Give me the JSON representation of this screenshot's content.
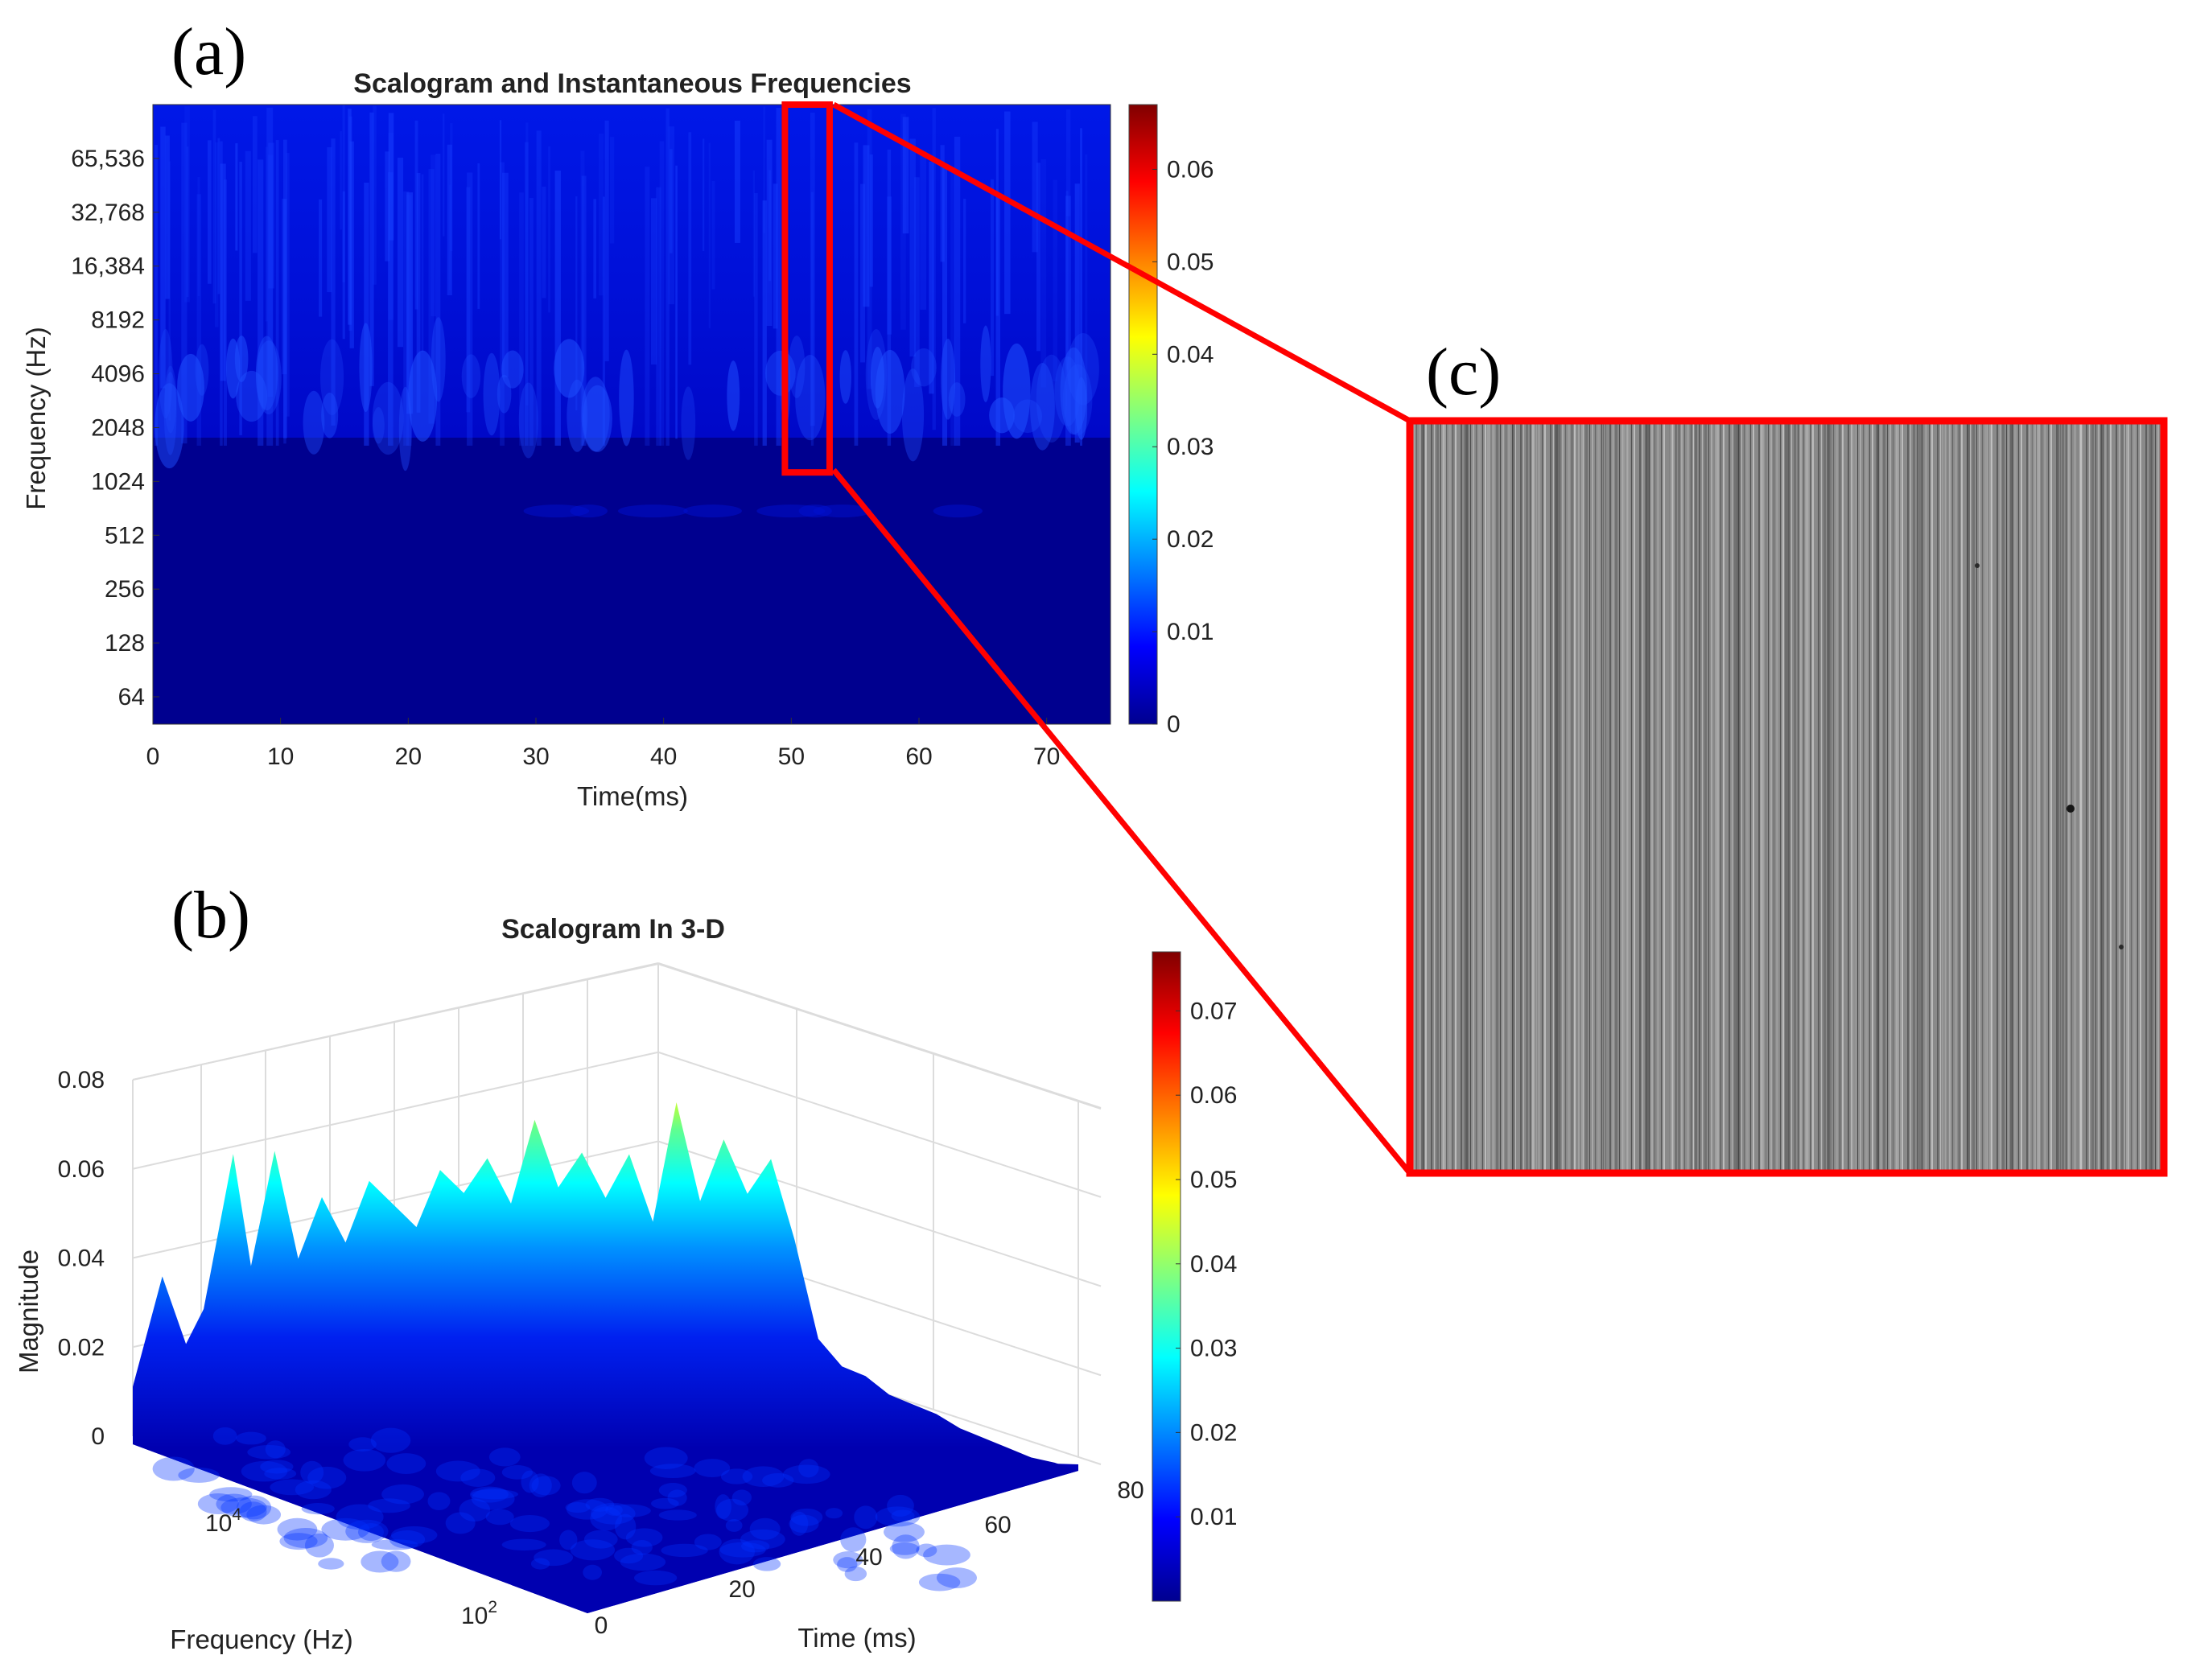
{
  "colors": {
    "jet": [
      "#00008f",
      "#0000ff",
      "#0080ff",
      "#00ffff",
      "#80ff80",
      "#ffff00",
      "#ff8000",
      "#ff0000",
      "#800000"
    ],
    "zoom_frame": "#ff0000",
    "micrograph_gray": "#8c8c8c"
  },
  "chart_data": [
    {
      "panel_label": "(a)",
      "type": "heatmap",
      "title": "Scalogram and Instantaneous Frequencies",
      "xlabel": "Time(ms)",
      "ylabel": "Frequency (Hz)",
      "x_ticks": [
        0,
        10,
        20,
        30,
        40,
        50,
        60,
        70
      ],
      "xlim": [
        0,
        75
      ],
      "y_scale": "log2",
      "y_ticks": [
        "64",
        "128",
        "256",
        "512",
        "1024",
        "2048",
        "4096",
        "8192",
        "16,384",
        "32,768",
        "65,536"
      ],
      "y_tick_values": [
        64,
        128,
        256,
        512,
        1024,
        2048,
        4096,
        8192,
        16384,
        32768,
        65536
      ],
      "ylim": [
        45,
        131072
      ],
      "colorbar": {
        "ticks": [
          0,
          0.01,
          0.02,
          0.03,
          0.04,
          0.05,
          0.06
        ],
        "range": [
          0,
          0.067
        ]
      },
      "highlight": {
        "time_range_ms": [
          49.5,
          53
        ],
        "freq_range_hz": [
          1150,
          131072
        ],
        "color": "red"
      },
      "bands": [
        {
          "freq_range_hz": [
            1800,
            131072
          ],
          "typical_magnitude": 0.006
        },
        {
          "freq_range_hz": [
            45,
            1800
          ],
          "typical_magnitude": 0.0
        }
      ]
    },
    {
      "panel_label": "(b)",
      "type": "area",
      "title": "Scalogram In 3-D",
      "xlabel": "Time (ms)",
      "ylabel": "Frequency (Hz)",
      "zlabel": "Magnitude",
      "x_ticks": [
        0,
        20,
        40,
        60,
        80
      ],
      "y_ticks": [
        "10^2",
        "10^4"
      ],
      "z_ticks": [
        0,
        0.02,
        0.04,
        0.06,
        0.08
      ],
      "zlim": [
        0,
        0.08
      ],
      "colorbar": {
        "ticks": [
          0.01,
          0.02,
          0.03,
          0.04,
          0.05,
          0.06,
          0.07
        ],
        "range": [
          0,
          0.077
        ]
      },
      "front_ridge_time_ms": [
        0,
        2.5,
        4.5,
        6,
        8.5,
        10,
        12,
        14,
        16,
        18,
        20,
        22,
        24,
        26,
        28,
        30,
        32,
        34,
        36,
        38,
        40,
        42,
        44,
        46,
        48,
        50,
        52,
        54,
        56,
        58,
        60,
        62,
        64,
        66,
        68,
        70,
        72,
        74,
        76,
        78
      ],
      "front_ridge_magnitude": [
        0.012,
        0.037,
        0.022,
        0.03,
        0.065,
        0.04,
        0.066,
        0.042,
        0.056,
        0.046,
        0.06,
        0.055,
        0.05,
        0.063,
        0.058,
        0.066,
        0.056,
        0.075,
        0.06,
        0.068,
        0.058,
        0.068,
        0.053,
        0.08,
        0.058,
        0.072,
        0.06,
        0.068,
        0.05,
        0.028,
        0.022,
        0.02,
        0.016,
        0.014,
        0.012,
        0.009,
        0.007,
        0.005,
        0.003,
        0.002
      ]
    }
  ],
  "panel_c": {
    "label": "(c)"
  }
}
